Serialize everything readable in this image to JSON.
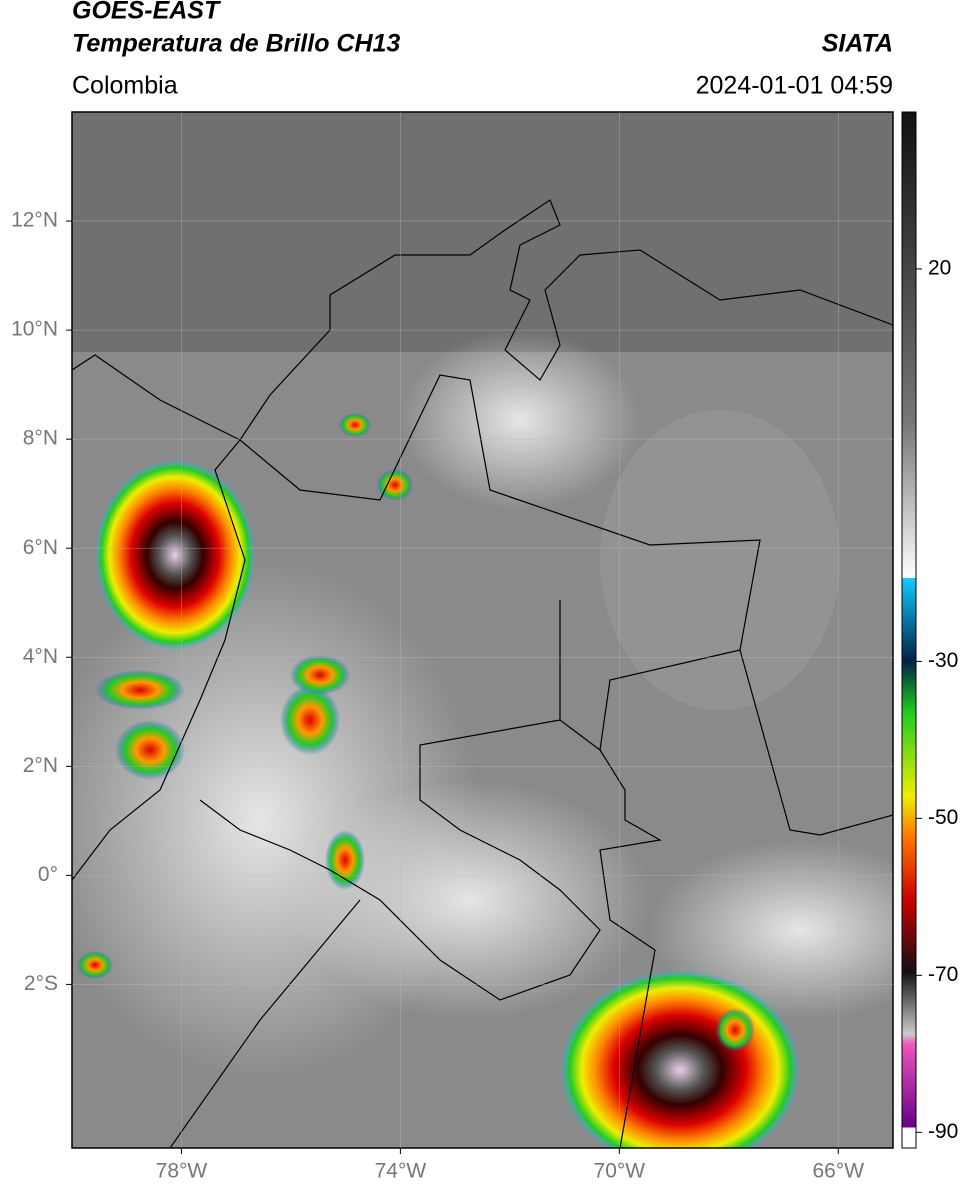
{
  "header": {
    "title": "GOES-EAST",
    "subtitle": "Temperatura de Brillo CH13",
    "source": "SIATA",
    "region": "Colombia",
    "datetime": "2024-01-01 04:59"
  },
  "map": {
    "lon_range": [
      -80,
      -65
    ],
    "lat_range": [
      -5,
      14
    ],
    "lon_ticks": [
      {
        "value": -78,
        "label": "78°W"
      },
      {
        "value": -74,
        "label": "74°W"
      },
      {
        "value": -70,
        "label": "70°W"
      },
      {
        "value": -66,
        "label": "66°W"
      }
    ],
    "lat_ticks": [
      {
        "value": 12,
        "label": "12°N"
      },
      {
        "value": 10,
        "label": "10°N"
      },
      {
        "value": 8,
        "label": "8°N"
      },
      {
        "value": 6,
        "label": "6°N"
      },
      {
        "value": 4,
        "label": "4°N"
      },
      {
        "value": 2,
        "label": "2°N"
      },
      {
        "value": 0,
        "label": "0°"
      },
      {
        "value": -2,
        "label": "2°S"
      }
    ]
  },
  "colorbar": {
    "range": [
      -92,
      40
    ],
    "ticks": [
      20,
      -30,
      -50,
      -70,
      -90
    ]
  }
}
